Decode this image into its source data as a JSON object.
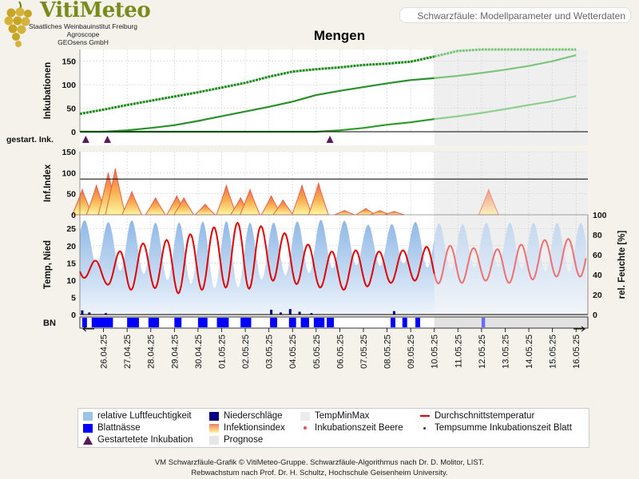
{
  "brand": {
    "name": "VitiMeteo",
    "lines": [
      "Staatliches Weinbauinstitut Freiburg",
      "Agroscope",
      "GEOsens GmbH"
    ]
  },
  "header_badge": "Schwarzfäule: Modellparameter und Wetterdaten",
  "title": "Mengen",
  "panels": {
    "inkubationen_label": "Inkubationen",
    "gestartet_label": "gestart. Ink.",
    "infindex_label": "Inf.Index",
    "temp_label": "Temp, Nied",
    "feuchte_label": "rel. Feuchte [%]",
    "bn_label": "BN"
  },
  "legend": [
    {
      "label": "relative Luftfeuchtigkeit",
      "color": "#9cc3ea"
    },
    {
      "label": "Niederschläge",
      "color": "#000080"
    },
    {
      "label": "TempMinMax",
      "color": "#ececec"
    },
    {
      "label": "Durchschnittstemperatur",
      "color": "#e00000"
    },
    {
      "label": "Blattnässe",
      "color": "#0000ff"
    },
    {
      "label": "Infektionsindex",
      "color": "#f08060"
    },
    {
      "label": "Inkubationszeit Beere",
      "color": "#e05050"
    },
    {
      "label": "Tempsumme Inkubationszeit Blatt",
      "color": "#333333"
    },
    {
      "label": "Gestartetete Inkubation",
      "color": "#5a1a5a"
    },
    {
      "label": "Prognose",
      "color": "#e6e6e6"
    }
  ],
  "credits": [
    "VM Schwarzfäule-Grafik © VitiMeteo-Gruppe. Schwarzfäule-Algorithmus nach Dr. D. Molitor, LIST.",
    "Rebwachstum nach Prof. Dr. H. Schultz, Hochschule Geisenheim University."
  ],
  "chart_data": {
    "type": "line",
    "dates": [
      "26.04.25",
      "27.04.25",
      "28.04.25",
      "29.04.25",
      "30.04.25",
      "01.05.25",
      "02.05.25",
      "03.05.25",
      "04.05.25",
      "05.05.25",
      "06.05.25",
      "07.05.25",
      "08.05.25",
      "09.05.25",
      "10.05.25",
      "11.05.25",
      "12.05.25",
      "13.05.25",
      "14.05.25",
      "15.05.25",
      "16.05.25"
    ],
    "x_start": "25.04.25",
    "forecast_start": "10.05.25",
    "inkubationen": {
      "ylim": [
        0,
        175
      ],
      "yticks": [
        0,
        50,
        100,
        150
      ],
      "series": [
        {
          "values": [
            38,
            47,
            57,
            66,
            75,
            84,
            94,
            104,
            117,
            128,
            133,
            137,
            142,
            145,
            149,
            160,
            172,
            175,
            175,
            175,
            175,
            175
          ]
        },
        {
          "values": [
            0,
            0,
            3,
            8,
            14,
            23,
            33,
            43,
            53,
            64,
            78,
            87,
            95,
            103,
            110,
            114,
            119,
            125,
            132,
            140,
            150,
            163
          ]
        },
        {
          "values": [
            0,
            0,
            0,
            0,
            0,
            0,
            0,
            0,
            0,
            0,
            0,
            3,
            8,
            15,
            20,
            27,
            33,
            40,
            48,
            57,
            65,
            76
          ]
        }
      ]
    },
    "gestartete_inkubation": [
      "25.04.25 06:00",
      "26.04.25 04:00",
      "05.05.25 14:00"
    ],
    "infektionsindex": {
      "ylim": [
        0,
        150
      ],
      "yticks": [
        0,
        50,
        100,
        150
      ],
      "threshold": 85,
      "peaks": [
        {
          "day": 0.1,
          "value": 60
        },
        {
          "day": 0.7,
          "value": 70
        },
        {
          "day": 1.2,
          "value": 100
        },
        {
          "day": 1.5,
          "value": 110
        },
        {
          "day": 2.2,
          "value": 55
        },
        {
          "day": 3.2,
          "value": 40
        },
        {
          "day": 4.1,
          "value": 45
        },
        {
          "day": 4.4,
          "value": 40
        },
        {
          "day": 5.3,
          "value": 25
        },
        {
          "day": 6.2,
          "value": 70
        },
        {
          "day": 6.8,
          "value": 40
        },
        {
          "day": 7.2,
          "value": 60
        },
        {
          "day": 8.1,
          "value": 45
        },
        {
          "day": 8.6,
          "value": 35
        },
        {
          "day": 9.4,
          "value": 70
        },
        {
          "day": 10.1,
          "value": 75
        },
        {
          "day": 11.2,
          "value": 10
        },
        {
          "day": 12.1,
          "value": 15
        },
        {
          "day": 12.7,
          "value": 10
        },
        {
          "day": 13.3,
          "value": 8
        },
        {
          "day": 17.3,
          "value": 60
        }
      ]
    },
    "temperatur": {
      "ylim": [
        0,
        29
      ],
      "yticks": [
        0,
        5,
        10,
        15,
        20,
        25
      ],
      "feuchte_ylim": [
        0,
        100
      ],
      "feuchte_yticks": [
        0,
        20,
        40,
        60,
        80,
        100
      ],
      "daily_min": [
        11,
        9,
        7,
        8,
        6,
        7,
        8,
        7,
        10,
        9,
        8,
        7,
        8,
        9,
        10,
        9,
        9,
        10,
        9,
        10,
        11,
        11
      ],
      "daily_max": [
        17,
        15,
        20,
        21,
        22,
        24,
        26,
        27,
        25,
        23,
        19,
        18,
        19,
        18,
        19,
        20,
        20,
        19,
        19,
        21,
        22,
        22
      ],
      "feuchte_max": [
        95,
        92,
        95,
        92,
        92,
        93,
        94,
        92,
        92,
        93,
        95,
        95,
        90,
        90,
        93,
        92,
        90,
        92,
        92,
        92,
        92,
        92
      ],
      "feuchte_min": [
        55,
        48,
        42,
        40,
        32,
        30,
        25,
        28,
        38,
        40,
        42,
        48,
        50,
        48,
        52,
        45,
        45,
        48,
        48,
        45,
        42,
        42
      ],
      "niederschlag": [
        {
          "day": 0.1,
          "value": 1.2
        },
        {
          "day": 0.4,
          "value": 0.6
        },
        {
          "day": 1.1,
          "value": 0.4
        },
        {
          "day": 8.1,
          "value": 1.4
        },
        {
          "day": 8.5,
          "value": 0.6
        },
        {
          "day": 8.9,
          "value": 1.6
        },
        {
          "day": 9.3,
          "value": 0.8
        },
        {
          "day": 9.8,
          "value": 0.4
        },
        {
          "day": 13.3,
          "value": 1.0
        }
      ]
    },
    "blattnaesse": [
      [
        0.1,
        0.3
      ],
      [
        0.5,
        1.4
      ],
      [
        2.0,
        2.5
      ],
      [
        2.9,
        3.35
      ],
      [
        4.0,
        4.3
      ],
      [
        5.0,
        5.4
      ],
      [
        5.8,
        6.3
      ],
      [
        6.8,
        7.25
      ],
      [
        8.05,
        8.35
      ],
      [
        8.85,
        9.15
      ],
      [
        9.35,
        9.7
      ],
      [
        9.9,
        10.35
      ],
      [
        10.45,
        10.75
      ],
      [
        13.15,
        13.35
      ],
      [
        13.65,
        13.85
      ],
      [
        14.2,
        14.4
      ],
      [
        17.0,
        17.15
      ]
    ]
  }
}
